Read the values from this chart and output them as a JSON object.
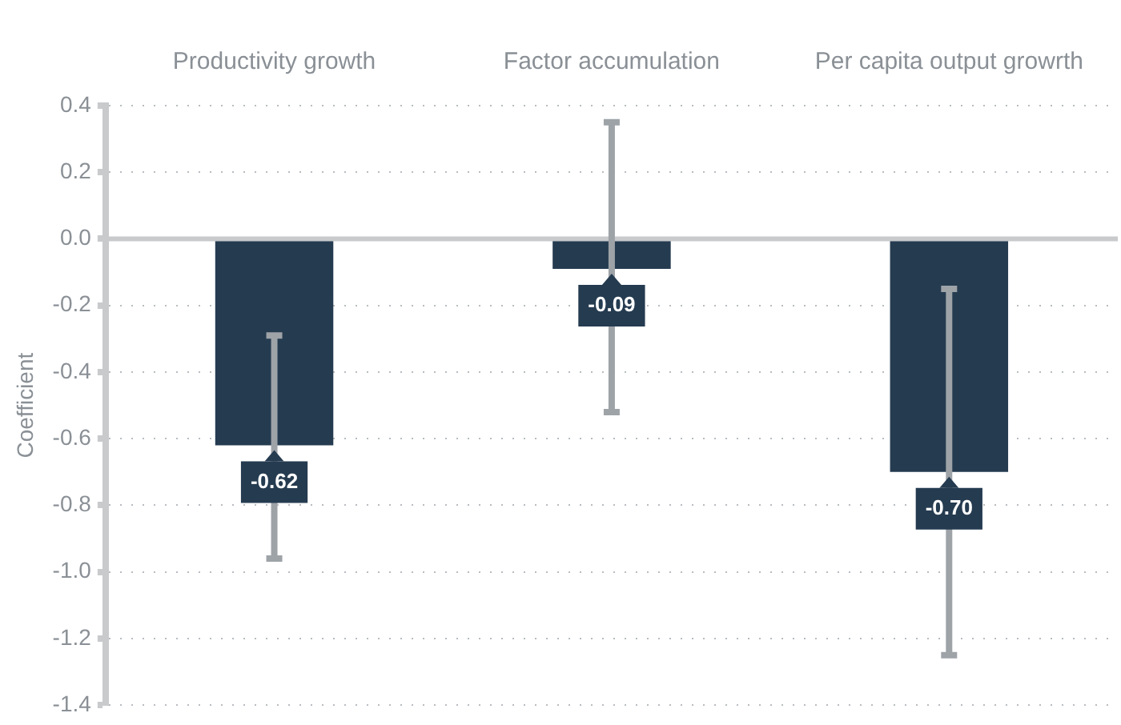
{
  "chart_data": {
    "type": "bar",
    "ylabel": "Coefficient",
    "categories": [
      "Productivity growth",
      "Factor accumulation",
      "Per capita output growrth"
    ],
    "values": [
      -0.62,
      -0.09,
      -0.7
    ],
    "color": "#253b50",
    "errors": [
      [
        -0.96,
        -0.29
      ],
      [
        -0.52,
        0.35
      ],
      [
        -1.25,
        -0.15
      ]
    ],
    "value_labels": [
      "-0.62",
      "-0.09",
      "-0.70"
    ],
    "ylim": [
      -1.4,
      0.4
    ],
    "yticks": [
      {
        "value": 0.4,
        "label": "0.4"
      },
      {
        "value": 0.2,
        "label": "0.2"
      },
      {
        "value": 0,
        "label": "0.0"
      },
      {
        "value": -0.2,
        "label": "-0.2"
      },
      {
        "value": -0.4,
        "label": "-0.4"
      },
      {
        "value": -0.6,
        "label": "-0.6"
      },
      {
        "value": -0.8,
        "label": "-0.8"
      },
      {
        "value": -1,
        "label": "-1.0"
      },
      {
        "value": -1.2,
        "label": "-1.2"
      },
      {
        "value": -1.4,
        "label": "-1.4"
      }
    ],
    "grid": "y",
    "legend": false
  }
}
